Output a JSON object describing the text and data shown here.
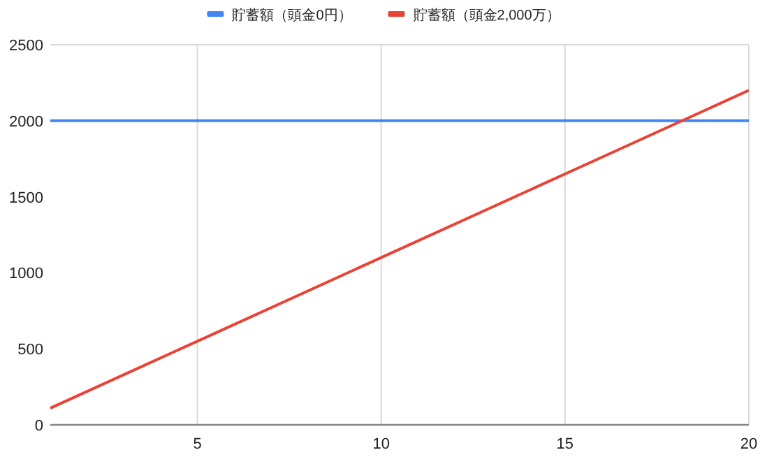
{
  "chart_data": {
    "type": "line",
    "x": [
      1,
      5,
      10,
      15,
      20
    ],
    "series": [
      {
        "name": "貯蓄額（頭金0円）",
        "color": "#4285f4",
        "values": [
          2000,
          2000,
          2000,
          2000,
          2000
        ]
      },
      {
        "name": "貯蓄額（頭金2,000万）",
        "color": "#ea4335",
        "values": [
          110,
          550,
          1100,
          1650,
          2200
        ]
      }
    ],
    "xlim": [
      1,
      20
    ],
    "xticks": [
      5,
      10,
      15,
      20
    ],
    "ylim": [
      0,
      2500
    ],
    "yticks": [
      0,
      500,
      1000,
      1500,
      2000,
      2500
    ],
    "grid": "x",
    "legend": "top",
    "marker": "none",
    "line_style": "solid"
  }
}
